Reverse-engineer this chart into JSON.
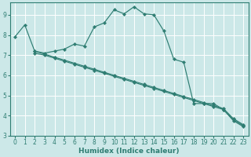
{
  "xlabel": "Humidex (Indice chaleur)",
  "ylabel": "",
  "background_color": "#cce8e8",
  "grid_color": "#ffffff",
  "line_color": "#2e7d72",
  "xlim": [
    -0.5,
    23.5
  ],
  "ylim": [
    3,
    9.6
  ],
  "yticks": [
    3,
    4,
    5,
    6,
    7,
    8,
    9
  ],
  "xticks": [
    0,
    1,
    2,
    3,
    4,
    5,
    6,
    7,
    8,
    9,
    10,
    11,
    12,
    13,
    14,
    15,
    16,
    17,
    18,
    19,
    20,
    21,
    22,
    23
  ],
  "series": [
    {
      "x": [
        0,
        1,
        2,
        3,
        4,
        5,
        6,
        7,
        8,
        9,
        10,
        11,
        12,
        13,
        14,
        15,
        16,
        17,
        18,
        19,
        20,
        21,
        22,
        23
      ],
      "y": [
        7.9,
        8.5,
        7.2,
        7.1,
        7.2,
        7.3,
        7.55,
        7.45,
        8.4,
        8.6,
        9.25,
        9.05,
        9.4,
        9.05,
        9.0,
        8.2,
        6.8,
        6.65,
        4.6,
        4.6,
        4.6,
        4.3,
        3.8,
        3.5
      ]
    },
    {
      "x": [
        2,
        3,
        4,
        5,
        6,
        7,
        8,
        9,
        10,
        11,
        12,
        13,
        14,
        15,
        16,
        17,
        18,
        19,
        20,
        21,
        22,
        23
      ],
      "y": [
        7.1,
        7.0,
        6.85,
        6.7,
        6.55,
        6.4,
        6.25,
        6.1,
        5.95,
        5.8,
        5.65,
        5.5,
        5.35,
        5.2,
        5.05,
        4.9,
        4.75,
        4.6,
        4.45,
        4.3,
        3.75,
        3.45
      ]
    },
    {
      "x": [
        2,
        3,
        4,
        5,
        6,
        7,
        8,
        9,
        10,
        11,
        12,
        13,
        14,
        15,
        16,
        17,
        18,
        19,
        20,
        21,
        22,
        23
      ],
      "y": [
        7.2,
        7.05,
        6.9,
        6.75,
        6.6,
        6.45,
        6.3,
        6.15,
        6.0,
        5.85,
        5.7,
        5.55,
        5.4,
        5.25,
        5.1,
        4.95,
        4.8,
        4.65,
        4.5,
        4.35,
        3.85,
        3.55
      ]
    }
  ]
}
